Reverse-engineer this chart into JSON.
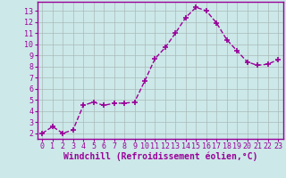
{
  "x": [
    0,
    1,
    2,
    3,
    4,
    5,
    6,
    7,
    8,
    9,
    10,
    11,
    12,
    13,
    14,
    15,
    16,
    17,
    18,
    19,
    20,
    21,
    22,
    23
  ],
  "y": [
    2.0,
    2.6,
    2.0,
    2.3,
    4.5,
    4.8,
    4.5,
    4.7,
    4.7,
    4.8,
    6.7,
    8.7,
    9.7,
    11.0,
    12.4,
    13.3,
    13.0,
    11.9,
    10.4,
    9.4,
    8.4,
    8.1,
    8.2,
    8.6
  ],
  "line_color": "#990099",
  "marker": "+",
  "marker_size": 4,
  "marker_lw": 1.2,
  "bg_color": "#cce8e8",
  "grid_color": "#aababa",
  "xlabel": "Windchill (Refroidissement éolien,°C)",
  "xlabel_color": "#990099",
  "ylabel_ticks": [
    2,
    3,
    4,
    5,
    6,
    7,
    8,
    9,
    10,
    11,
    12,
    13
  ],
  "xlim": [
    -0.5,
    23.5
  ],
  "ylim": [
    1.5,
    13.8
  ],
  "xticks": [
    0,
    1,
    2,
    3,
    4,
    5,
    6,
    7,
    8,
    9,
    10,
    11,
    12,
    13,
    14,
    15,
    16,
    17,
    18,
    19,
    20,
    21,
    22,
    23
  ],
  "tick_label_color": "#990099",
  "tick_label_fontsize": 6.0,
  "xlabel_fontsize": 7.0,
  "border_color": "#990099",
  "line_width": 1.0
}
